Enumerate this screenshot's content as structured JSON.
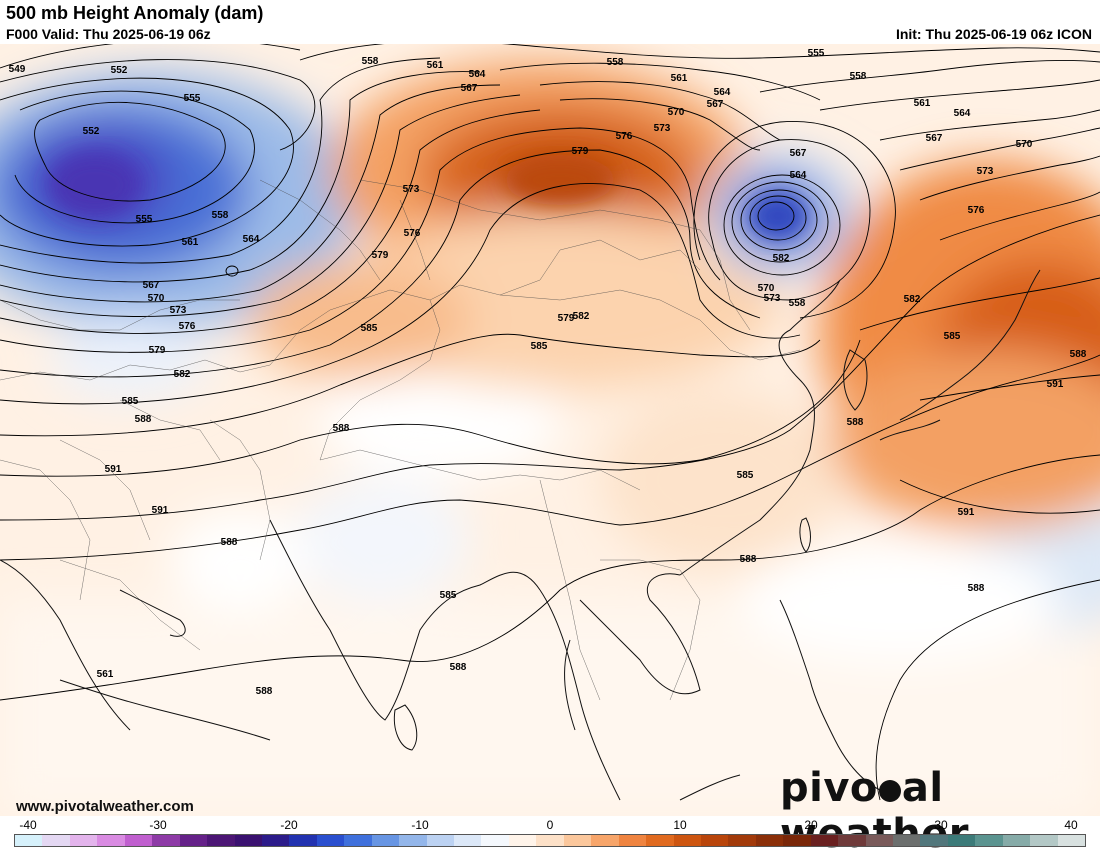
{
  "header": {
    "title": "500 mb Height Anomaly (dam)",
    "valid": "F000 Valid: Thu 2025-06-19 06z",
    "init": "Init: Thu 2025-06-19 06z ICON"
  },
  "footer": {
    "website": "www.pivotalweather.com",
    "logo_before": "pivo",
    "logo_after": "al weather"
  },
  "colorbar": {
    "ticks": [
      "-40",
      "-30",
      "-20",
      "-10",
      "0",
      "10",
      "20",
      "30",
      "40"
    ],
    "colors": [
      "#d6f1fb",
      "#e4d8f3",
      "#e3b4ec",
      "#d98be2",
      "#c05fcf",
      "#8e3ba7",
      "#652189",
      "#4c1675",
      "#3a1170",
      "#2c1b8a",
      "#2232b0",
      "#2a4fcf",
      "#3f70dc",
      "#6795e3",
      "#93b6ea",
      "#bcd2f2",
      "#dce8f8",
      "#f4f8fd",
      "#fff4ea",
      "#fde1c8",
      "#fbc79c",
      "#f7a56a",
      "#ef8440",
      "#e06a1f",
      "#cd5510",
      "#b9450b",
      "#a23a0a",
      "#8b2f09",
      "#7a2709",
      "#6a2020",
      "#6f3a3a",
      "#7a5a5a",
      "#6c6f6e",
      "#52777c",
      "#3c7b79",
      "#5b9490",
      "#86aba8",
      "#b3c8c6",
      "#d8e1e0"
    ]
  },
  "contour_labels": [
    {
      "text": "549"
    },
    {
      "text": "552"
    },
    {
      "text": "555"
    },
    {
      "text": "552"
    },
    {
      "text": "555"
    },
    {
      "text": "558"
    },
    {
      "text": "561"
    },
    {
      "text": "564"
    },
    {
      "text": "567"
    },
    {
      "text": "570"
    },
    {
      "text": "573"
    },
    {
      "text": "576"
    },
    {
      "text": "579"
    },
    {
      "text": "582"
    },
    {
      "text": "585"
    },
    {
      "text": "588"
    },
    {
      "text": "591"
    },
    {
      "text": "591"
    },
    {
      "text": "588"
    },
    {
      "text": "558"
    },
    {
      "text": "561"
    },
    {
      "text": "564"
    },
    {
      "text": "567"
    },
    {
      "text": "573"
    },
    {
      "text": "576"
    },
    {
      "text": "579"
    },
    {
      "text": "585"
    },
    {
      "text": "558"
    },
    {
      "text": "561"
    },
    {
      "text": "564"
    },
    {
      "text": "567"
    },
    {
      "text": "570"
    },
    {
      "text": "573"
    },
    {
      "text": "576"
    },
    {
      "text": "579"
    },
    {
      "text": "582"
    },
    {
      "text": "585"
    },
    {
      "text": "588"
    },
    {
      "text": "555"
    },
    {
      "text": "558"
    },
    {
      "text": "561"
    },
    {
      "text": "564"
    },
    {
      "text": "567"
    },
    {
      "text": "570"
    },
    {
      "text": "573"
    },
    {
      "text": "576"
    },
    {
      "text": "582"
    },
    {
      "text": "585"
    },
    {
      "text": "588"
    },
    {
      "text": "591"
    },
    {
      "text": "591"
    },
    {
      "text": "588"
    },
    {
      "text": "585"
    },
    {
      "text": "588"
    },
    {
      "text": "588"
    },
    {
      "text": "585"
    },
    {
      "text": "588"
    },
    {
      "text": "588"
    },
    {
      "text": "561"
    },
    {
      "text": "564"
    },
    {
      "text": "567"
    },
    {
      "text": "570"
    },
    {
      "text": "573"
    },
    {
      "text": "558"
    },
    {
      "text": "579"
    },
    {
      "text": "582"
    }
  ]
}
